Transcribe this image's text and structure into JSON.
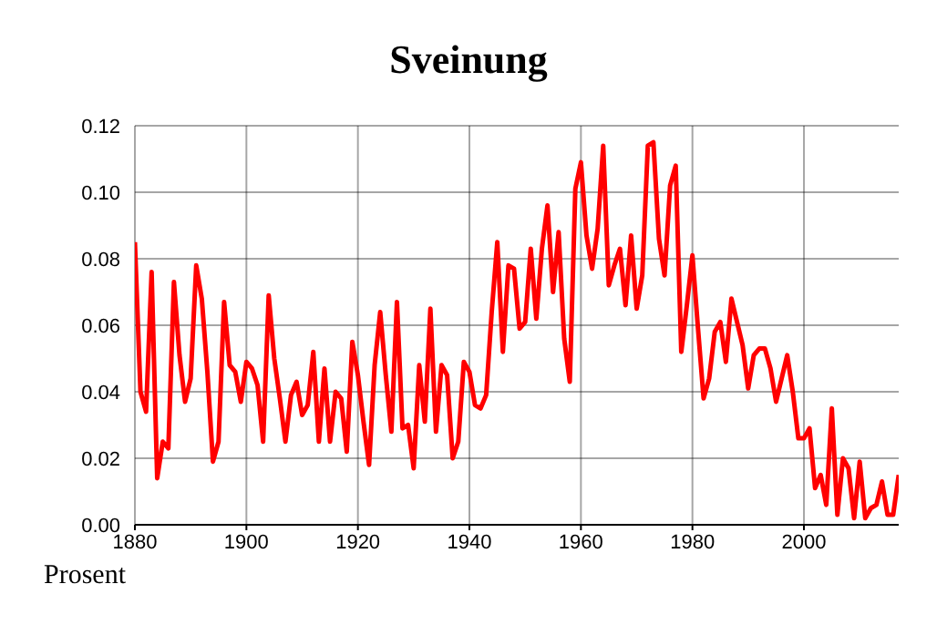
{
  "chart_data": {
    "type": "line",
    "title": "Sveinung",
    "ylabel": "Prosent",
    "x": [
      1880,
      1881,
      1882,
      1883,
      1884,
      1885,
      1886,
      1887,
      1888,
      1889,
      1890,
      1891,
      1892,
      1893,
      1894,
      1895,
      1896,
      1897,
      1898,
      1899,
      1900,
      1901,
      1902,
      1903,
      1904,
      1905,
      1906,
      1907,
      1908,
      1909,
      1910,
      1911,
      1912,
      1913,
      1914,
      1915,
      1916,
      1917,
      1918,
      1919,
      1920,
      1921,
      1922,
      1923,
      1924,
      1925,
      1926,
      1927,
      1928,
      1929,
      1930,
      1931,
      1932,
      1933,
      1934,
      1935,
      1936,
      1937,
      1938,
      1939,
      1940,
      1941,
      1942,
      1943,
      1944,
      1945,
      1946,
      1947,
      1948,
      1949,
      1950,
      1951,
      1952,
      1953,
      1954,
      1955,
      1956,
      1957,
      1958,
      1959,
      1960,
      1961,
      1962,
      1963,
      1964,
      1965,
      1966,
      1967,
      1968,
      1969,
      1970,
      1971,
      1972,
      1973,
      1974,
      1975,
      1976,
      1977,
      1978,
      1979,
      1980,
      1981,
      1982,
      1983,
      1984,
      1985,
      1986,
      1987,
      1988,
      1989,
      1990,
      1991,
      1992,
      1993,
      1994,
      1995,
      1996,
      1997,
      1998,
      1999,
      2000,
      2001,
      2002,
      2003,
      2004,
      2005,
      2006,
      2007,
      2008,
      2009,
      2010,
      2011,
      2012,
      2013,
      2014,
      2015,
      2016,
      2017
    ],
    "series": [
      {
        "color": "#ff0000",
        "values": [
          0.085,
          0.04,
          0.034,
          0.076,
          0.014,
          0.025,
          0.023,
          0.073,
          0.051,
          0.037,
          0.044,
          0.078,
          0.068,
          0.046,
          0.019,
          0.025,
          0.067,
          0.048,
          0.046,
          0.037,
          0.049,
          0.047,
          0.042,
          0.025,
          0.069,
          0.05,
          0.038,
          0.025,
          0.039,
          0.043,
          0.033,
          0.036,
          0.052,
          0.025,
          0.047,
          0.025,
          0.04,
          0.038,
          0.022,
          0.055,
          0.045,
          0.031,
          0.018,
          0.048,
          0.064,
          0.045,
          0.028,
          0.067,
          0.029,
          0.03,
          0.017,
          0.048,
          0.031,
          0.065,
          0.028,
          0.048,
          0.045,
          0.02,
          0.025,
          0.049,
          0.046,
          0.036,
          0.035,
          0.039,
          0.064,
          0.085,
          0.052,
          0.078,
          0.077,
          0.059,
          0.061,
          0.083,
          0.062,
          0.083,
          0.096,
          0.07,
          0.088,
          0.056,
          0.043,
          0.101,
          0.109,
          0.087,
          0.077,
          0.089,
          0.114,
          0.072,
          0.078,
          0.083,
          0.066,
          0.087,
          0.065,
          0.075,
          0.114,
          0.115,
          0.086,
          0.075,
          0.102,
          0.108,
          0.052,
          0.066,
          0.081,
          0.059,
          0.038,
          0.044,
          0.058,
          0.061,
          0.049,
          0.068,
          0.061,
          0.054,
          0.041,
          0.051,
          0.053,
          0.053,
          0.047,
          0.037,
          0.044,
          0.051,
          0.04,
          0.026,
          0.026,
          0.029,
          0.011,
          0.015,
          0.006,
          0.035,
          0.003,
          0.02,
          0.017,
          0.002,
          0.019,
          0.002,
          0.005,
          0.006,
          0.013,
          0.003,
          0.003,
          0.015
        ]
      }
    ],
    "xlim": [
      1880,
      2017
    ],
    "xticks": [
      1880,
      1900,
      1920,
      1940,
      1960,
      1980,
      2000
    ],
    "ylim": [
      0,
      0.12
    ],
    "yticks": [
      {
        "value": 0,
        "label": "0.00"
      },
      {
        "value": 0.02,
        "label": "0.02"
      },
      {
        "value": 0.04,
        "label": "0.04"
      },
      {
        "value": 0.06,
        "label": "0.06"
      },
      {
        "value": 0.08,
        "label": "0.08"
      },
      {
        "value": 0.1,
        "label": "0.10"
      },
      {
        "value": 0.12,
        "label": "0.12"
      }
    ],
    "grid": true,
    "legend": false,
    "marker": "none",
    "line_style": "solid"
  }
}
